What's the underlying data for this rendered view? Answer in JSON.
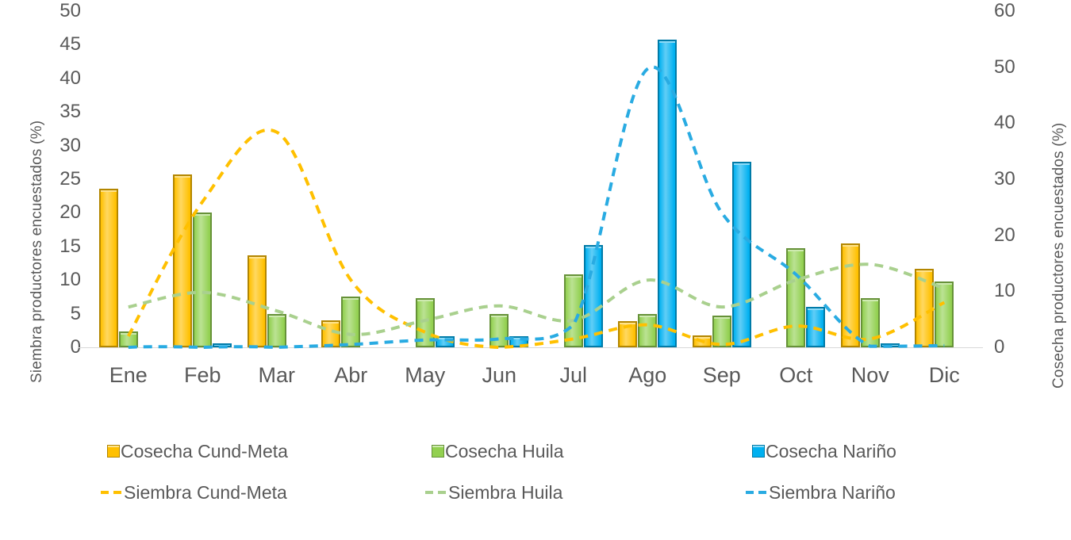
{
  "chart_data": {
    "type": "bar",
    "subtype": "combo-bar-with-smooth-dashed-lines",
    "title": "",
    "categories": [
      "Ene",
      "Feb",
      "Mar",
      "Abr",
      "May",
      "Jun",
      "Jul",
      "Ago",
      "Sep",
      "Oct",
      "Nov",
      "Dic"
    ],
    "left_axis": {
      "title": "Siembra productores encuestados (%)",
      "min": 0,
      "max": 50,
      "step": 5
    },
    "right_axis": {
      "title": "Cosecha productores encuestados (%)",
      "min": 0,
      "max": 60,
      "step": 10
    },
    "grid": false,
    "legend_position": "bottom",
    "bar_series": [
      {
        "name": "Cosecha Cund-Meta",
        "color": "#FFC000",
        "border": "#A98000",
        "axis": "left",
        "values": [
          23.6,
          25.7,
          13.7,
          4.0,
          0,
          0,
          0,
          3.9,
          1.8,
          0,
          15.5,
          11.7
        ]
      },
      {
        "name": "Cosecha Huila",
        "color": "#92D050",
        "border": "#507E32",
        "axis": "left",
        "values": [
          2.4,
          20.0,
          5.0,
          7.5,
          7.3,
          4.9,
          10.9,
          4.9,
          4.7,
          14.8,
          7.3,
          9.8
        ]
      },
      {
        "name": "Cosecha Nariño",
        "color": "#00B0F0",
        "border": "#0070A8",
        "axis": "left",
        "values": [
          0,
          0.6,
          0,
          0,
          1.7,
          1.6,
          15.2,
          45.8,
          27.6,
          6.0,
          0.6,
          0
        ]
      }
    ],
    "line_series": [
      {
        "name": "Siembra Cund-Meta",
        "color": "#FFC000",
        "axis": "right",
        "style": "dashed",
        "values": [
          2,
          26,
          38.4,
          12,
          2.7,
          0,
          1.5,
          4,
          0.5,
          3.8,
          1.5,
          8
        ]
      },
      {
        "name": "Siembra Huila",
        "color": "#A9D08E",
        "axis": "right",
        "style": "dashed",
        "values": [
          7.2,
          9.8,
          6.5,
          2.3,
          4.8,
          7.4,
          4.8,
          12,
          7.2,
          12,
          14.8,
          10.5
        ]
      },
      {
        "name": "Siembra Nariño",
        "color": "#29ABE2",
        "axis": "right",
        "style": "dashed",
        "values": [
          0,
          0,
          0,
          0.5,
          1.3,
          1.5,
          4,
          49.7,
          24,
          13,
          0.2,
          0.3
        ]
      }
    ]
  }
}
